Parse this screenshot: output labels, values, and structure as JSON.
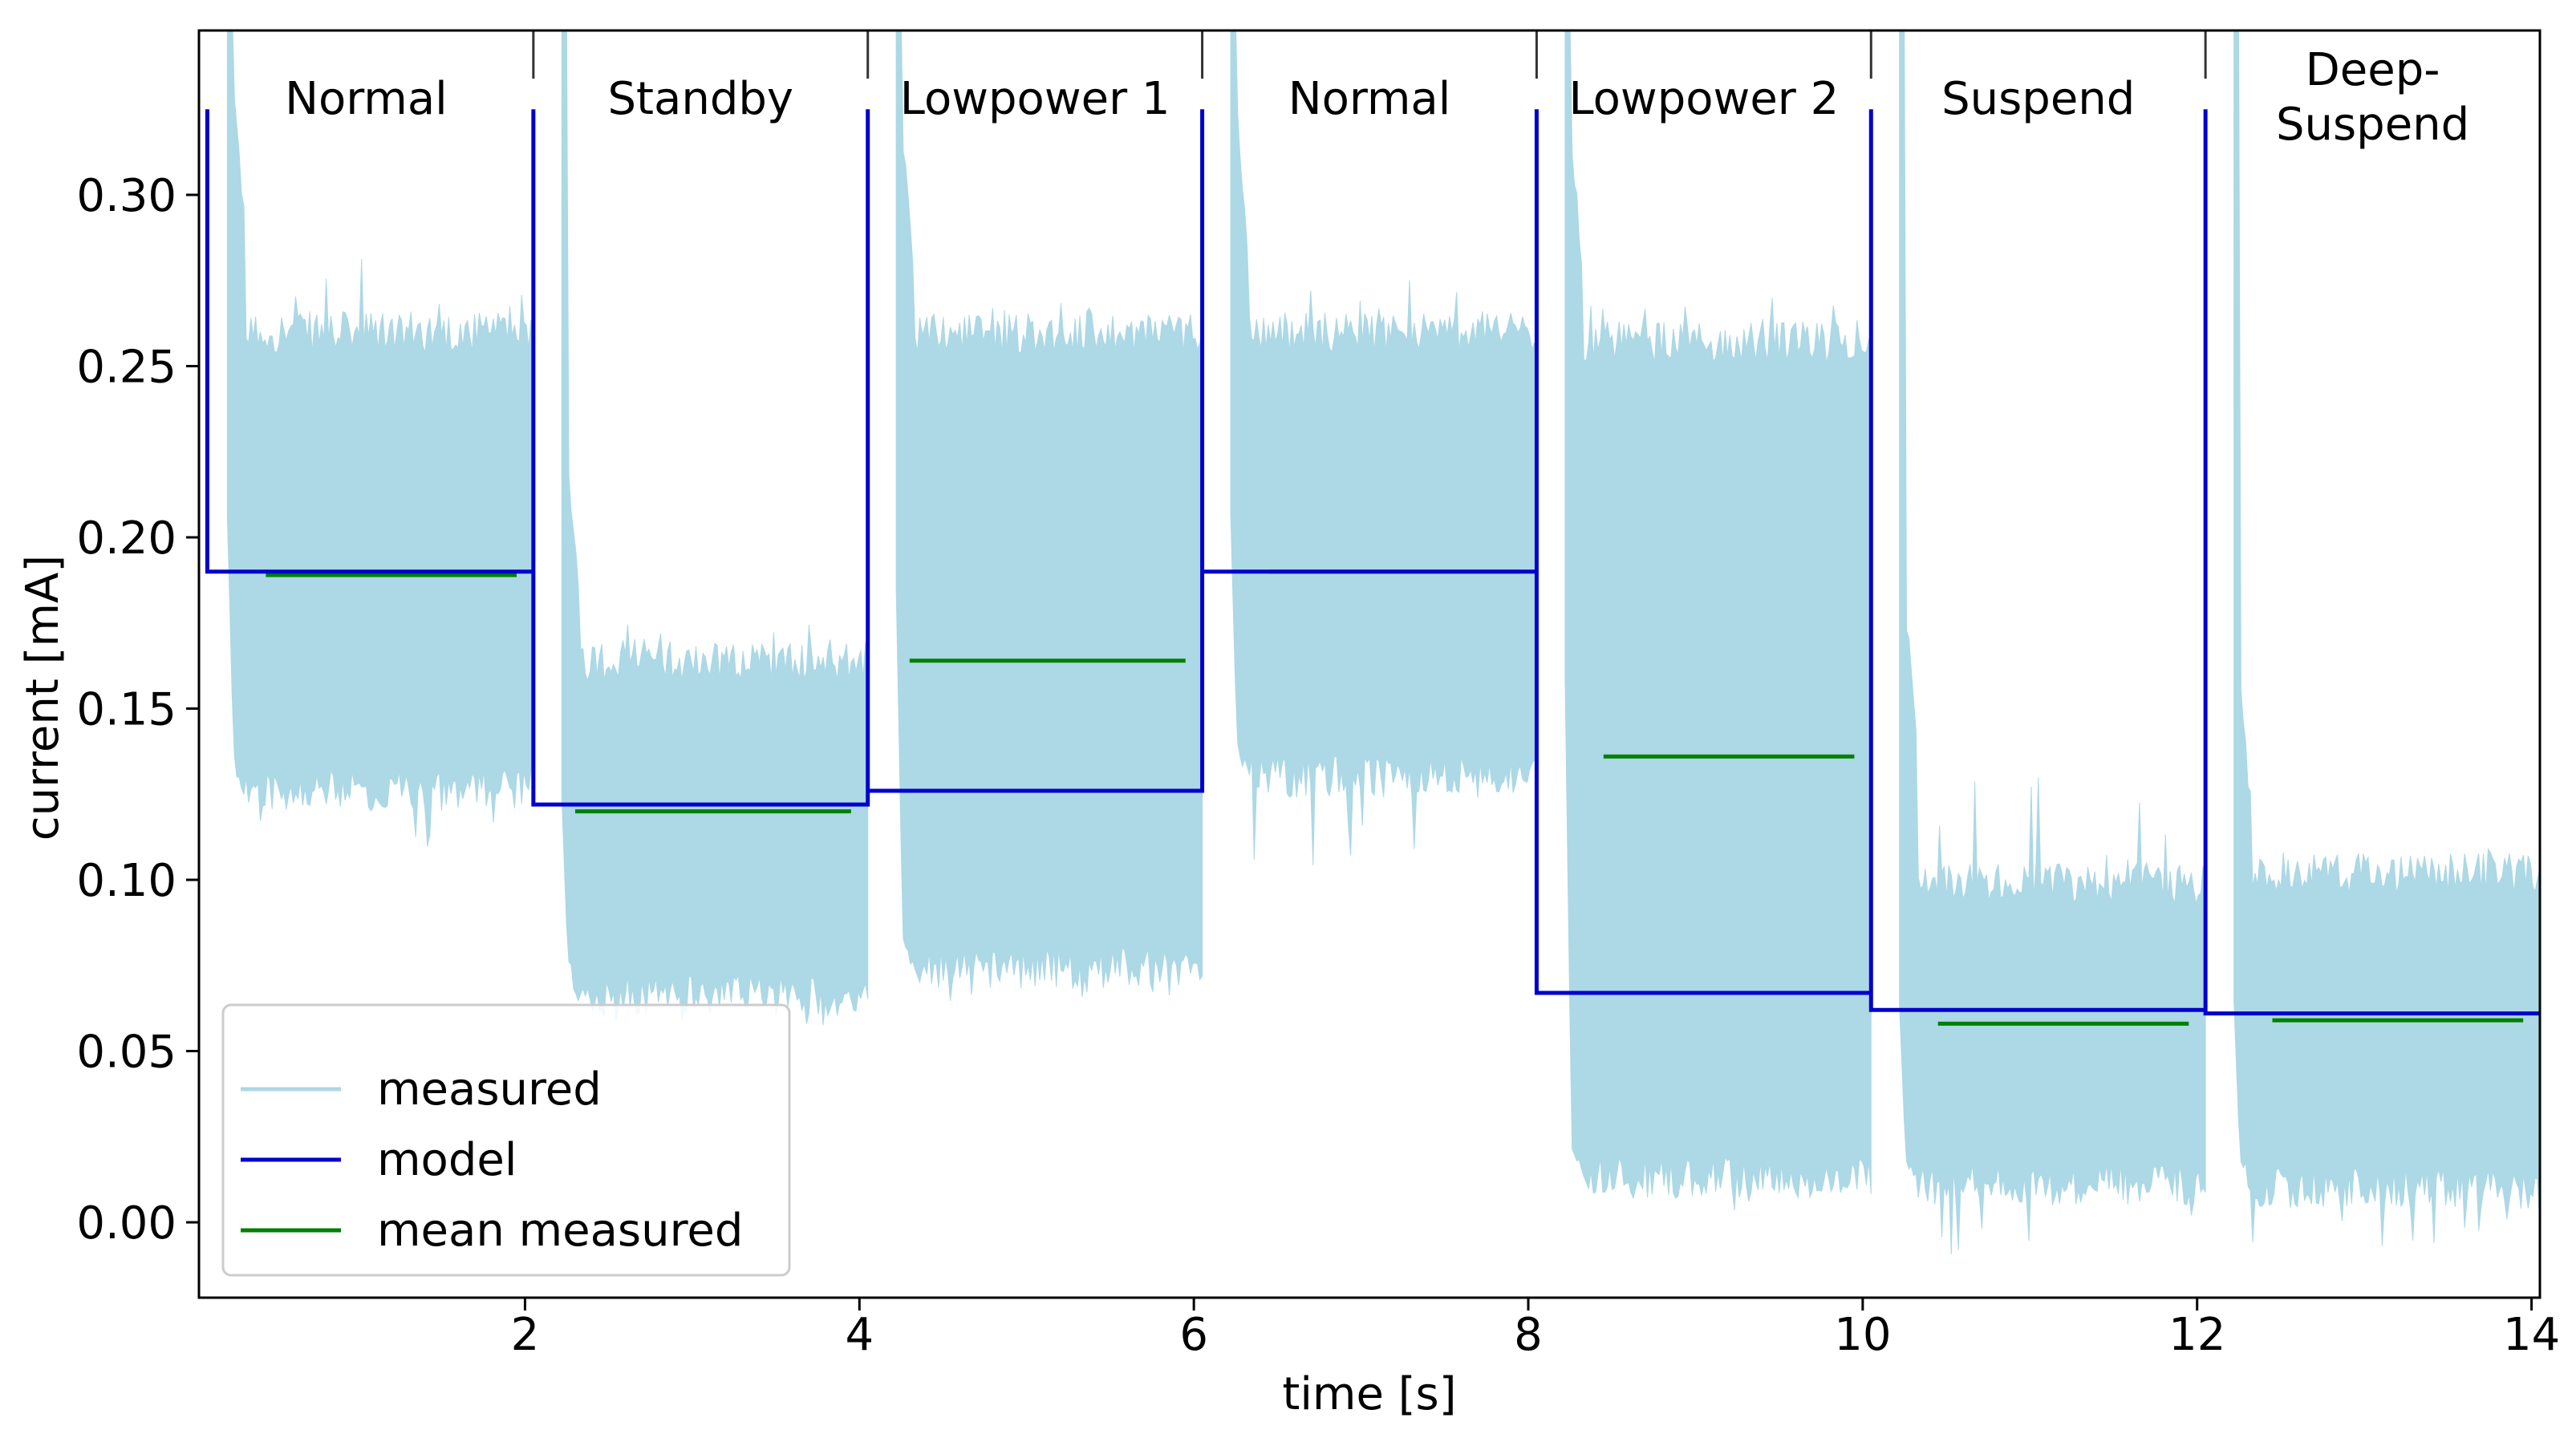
{
  "chart_data": {
    "type": "line",
    "xlabel": "time [s]",
    "ylabel": "current [mA]",
    "xlim": [
      0.05,
      14.05
    ],
    "ylim": [
      -0.022,
      0.348
    ],
    "xticks": [
      2,
      4,
      6,
      8,
      10,
      12,
      14
    ],
    "xtick_labels": [
      "2",
      "4",
      "6",
      "8",
      "10",
      "12",
      "14"
    ],
    "yticks": [
      0.0,
      0.05,
      0.1,
      0.15,
      0.2,
      0.25,
      0.3
    ],
    "ytick_labels": [
      "0.00",
      "0.05",
      "0.10",
      "0.15",
      "0.20",
      "0.25",
      "0.30"
    ],
    "grid": false,
    "legend": {
      "position": "lower-left",
      "entries": [
        "measured",
        "model",
        "mean measured"
      ]
    },
    "phase_boundaries": [
      2.05,
      4.05,
      6.05,
      8.05,
      10.05,
      12.05
    ],
    "phases": [
      {
        "label": "Normal",
        "start": 0.05,
        "end": 2.05
      },
      {
        "label": "Standby",
        "start": 2.05,
        "end": 4.05
      },
      {
        "label": "Lowpower 1",
        "start": 4.05,
        "end": 6.05
      },
      {
        "label": "Normal",
        "start": 6.05,
        "end": 8.05
      },
      {
        "label": "Lowpower 2",
        "start": 8.05,
        "end": 10.05
      },
      {
        "label": "Suspend",
        "start": 10.05,
        "end": 12.05
      },
      {
        "label": "Deep-\nSuspend",
        "start": 12.05,
        "end": 14.05
      }
    ],
    "series": [
      {
        "name": "measured",
        "color": "#add8e6",
        "style": "band",
        "segments": [
          {
            "start": 0.22,
            "end": 2.05,
            "low": 0.128,
            "high": 0.258,
            "spike_low": 0.105,
            "spike_high": 0.283
          },
          {
            "start": 2.22,
            "end": 4.05,
            "low": 0.068,
            "high": 0.162,
            "spike_low": 0.055,
            "spike_high": 0.175
          },
          {
            "start": 4.22,
            "end": 6.05,
            "low": 0.076,
            "high": 0.258,
            "spike_low": 0.064,
            "spike_high": 0.27
          },
          {
            "start": 6.22,
            "end": 8.05,
            "low": 0.132,
            "high": 0.258,
            "spike_low": 0.102,
            "spike_high": 0.276
          },
          {
            "start": 8.22,
            "end": 10.05,
            "low": 0.015,
            "high": 0.255,
            "spike_low": 0.003,
            "spike_high": 0.27
          },
          {
            "start": 10.22,
            "end": 12.05,
            "low": 0.013,
            "high": 0.097,
            "spike_low": -0.01,
            "spike_high": 0.132
          },
          {
            "start": 12.22,
            "end": 14.05,
            "low": 0.012,
            "high": 0.1,
            "spike_low": -0.009,
            "spike_high": 0.111
          }
        ]
      },
      {
        "name": "model",
        "color": "#0000cd",
        "style": "step",
        "steps": [
          {
            "start": 0.1,
            "end": 2.05,
            "value": 0.19
          },
          {
            "start": 2.05,
            "end": 4.05,
            "value": 0.122
          },
          {
            "start": 4.05,
            "end": 6.05,
            "value": 0.126
          },
          {
            "start": 6.05,
            "end": 8.05,
            "value": 0.19
          },
          {
            "start": 8.05,
            "end": 10.05,
            "value": 0.067
          },
          {
            "start": 10.05,
            "end": 12.05,
            "value": 0.062
          },
          {
            "start": 12.05,
            "end": 14.05,
            "value": 0.061
          }
        ],
        "spike_value": 0.325
      },
      {
        "name": "mean measured",
        "color": "#008000",
        "style": "segments",
        "segments": [
          {
            "start": 0.45,
            "end": 1.95,
            "value": 0.189
          },
          {
            "start": 2.3,
            "end": 3.95,
            "value": 0.12
          },
          {
            "start": 4.3,
            "end": 5.95,
            "value": 0.164
          },
          {
            "start": 6.45,
            "end": 7.95,
            "value": 0.19
          },
          {
            "start": 8.45,
            "end": 9.95,
            "value": 0.136
          },
          {
            "start": 10.45,
            "end": 11.95,
            "value": 0.058
          },
          {
            "start": 12.45,
            "end": 13.95,
            "value": 0.059
          }
        ]
      }
    ]
  }
}
